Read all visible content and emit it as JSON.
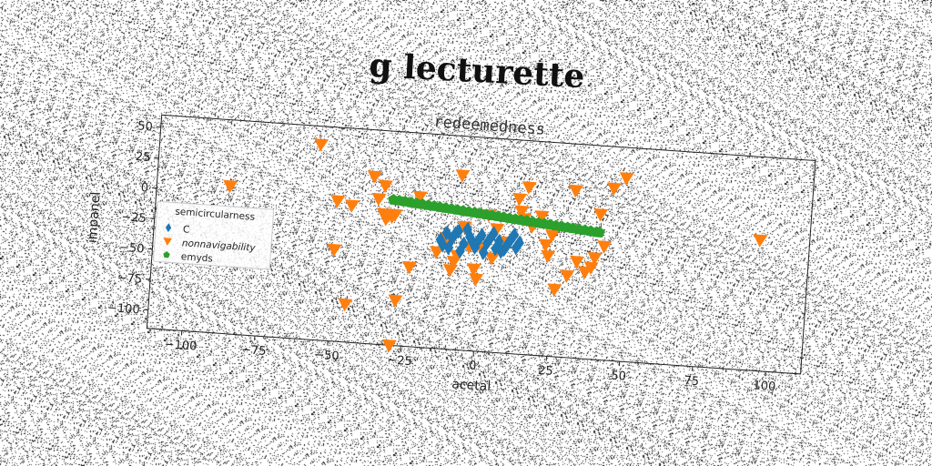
{
  "chart_data": {
    "type": "scatter",
    "title": "g lecturette",
    "subtitle": "redeemedness",
    "xlabel": "acetal",
    "ylabel": "impanel",
    "xlim": [
      -112,
      112
    ],
    "ylim": [
      -115,
      60
    ],
    "xticks": [
      -100,
      -75,
      -50,
      -25,
      0,
      25,
      50,
      75,
      100
    ],
    "yticks": [
      50,
      25,
      0,
      -25,
      -50,
      -75,
      -100
    ],
    "legend_title": "semicircularness",
    "legend_position": "center-left",
    "grid": false,
    "series": [
      {
        "name": "C",
        "marker": "diamond",
        "color": "#1f77b4",
        "points": [
          [
            -12,
            -20
          ],
          [
            -10,
            -24
          ],
          [
            -8,
            -18
          ],
          [
            -6,
            -28
          ],
          [
            -4,
            -22
          ],
          [
            -2,
            -30
          ],
          [
            0,
            -20
          ],
          [
            2,
            -26
          ],
          [
            4,
            -18
          ],
          [
            6,
            -24
          ],
          [
            8,
            -30
          ],
          [
            10,
            -22
          ],
          [
            12,
            -28
          ],
          [
            -14,
            -26
          ],
          [
            -11,
            -32
          ],
          [
            -7,
            -34
          ],
          [
            -3,
            -26
          ],
          [
            1,
            -34
          ],
          [
            5,
            -30
          ],
          [
            9,
            -26
          ],
          [
            13,
            -24
          ],
          [
            -9,
            -20
          ],
          [
            -5,
            -16
          ],
          [
            3,
            -22
          ],
          [
            7,
            -32
          ],
          [
            11,
            -18
          ],
          [
            -1,
            -24
          ],
          [
            -13,
            -30
          ]
        ]
      },
      {
        "name": "nonnavigability",
        "marker": "triangle-down",
        "color": "#ff7f0e",
        "points": [
          [
            -87,
            6
          ],
          [
            -57,
            45
          ],
          [
            -50,
            0
          ],
          [
            -45,
            -3
          ],
          [
            -50,
            -40
          ],
          [
            -45,
            -84
          ],
          [
            -38,
            22
          ],
          [
            -36,
            4
          ],
          [
            -34,
            -8
          ],
          [
            -33,
            -12
          ],
          [
            -34,
            15
          ],
          [
            -31,
            -10
          ],
          [
            -30,
            -8
          ],
          [
            -29,
            -115
          ],
          [
            -28,
            -78
          ],
          [
            -24,
            -50
          ],
          [
            -22,
            8
          ],
          [
            -15,
            -36
          ],
          [
            -12,
            -24
          ],
          [
            -8,
            -38
          ],
          [
            -10,
            -50
          ],
          [
            -9,
            -43
          ],
          [
            -6,
            -14
          ],
          [
            -8,
            28
          ],
          [
            -4,
            -30
          ],
          [
            -2,
            -48
          ],
          [
            -1,
            -56
          ],
          [
            0,
            -30
          ],
          [
            2,
            -3
          ],
          [
            4,
            -38
          ],
          [
            5,
            -14
          ],
          [
            8,
            -24
          ],
          [
            12,
            12
          ],
          [
            13,
            2
          ],
          [
            14,
            -4
          ],
          [
            15,
            22
          ],
          [
            17,
            -10
          ],
          [
            20,
            -1
          ],
          [
            22,
            -24
          ],
          [
            23,
            -33
          ],
          [
            24,
            -16
          ],
          [
            26,
            -60
          ],
          [
            30,
            -48
          ],
          [
            31,
            22
          ],
          [
            33,
            -36
          ],
          [
            36,
            -44
          ],
          [
            38,
            -40
          ],
          [
            39,
            -32
          ],
          [
            40,
            4
          ],
          [
            42,
            -22
          ],
          [
            44,
            26
          ],
          [
            48,
            35
          ],
          [
            95,
            -8
          ]
        ]
      },
      {
        "name": "emyds",
        "marker": "pentagon",
        "color": "#2ca02c",
        "points": [
          [
            -31,
            4
          ],
          [
            -29,
            3.6
          ],
          [
            -27,
            3.2
          ],
          [
            -25,
            2.8
          ],
          [
            -23,
            2.3
          ],
          [
            -21,
            1.9
          ],
          [
            -19,
            1.5
          ],
          [
            -17,
            1.1
          ],
          [
            -15,
            0.6
          ],
          [
            -13,
            0.2
          ],
          [
            -11,
            -0.2
          ],
          [
            -9,
            -0.6
          ],
          [
            -7,
            -1.1
          ],
          [
            -5,
            -1.5
          ],
          [
            -3,
            -1.9
          ],
          [
            -1,
            -2.3
          ],
          [
            1,
            -2.8
          ],
          [
            3,
            -3.2
          ],
          [
            5,
            -3.6
          ],
          [
            7,
            -4
          ],
          [
            9,
            -4.5
          ],
          [
            11,
            -4.9
          ],
          [
            13,
            -5.3
          ],
          [
            15,
            -5.7
          ],
          [
            17,
            -6.2
          ],
          [
            19,
            -6.6
          ],
          [
            21,
            -7
          ],
          [
            23,
            -7.4
          ],
          [
            25,
            -7.9
          ],
          [
            27,
            -8.3
          ],
          [
            29,
            -8.7
          ],
          [
            31,
            -9.1
          ],
          [
            33,
            -9.6
          ],
          [
            35,
            -10
          ],
          [
            37,
            -10.4
          ],
          [
            39,
            -10.8
          ],
          [
            40,
            -11
          ]
        ]
      }
    ]
  }
}
